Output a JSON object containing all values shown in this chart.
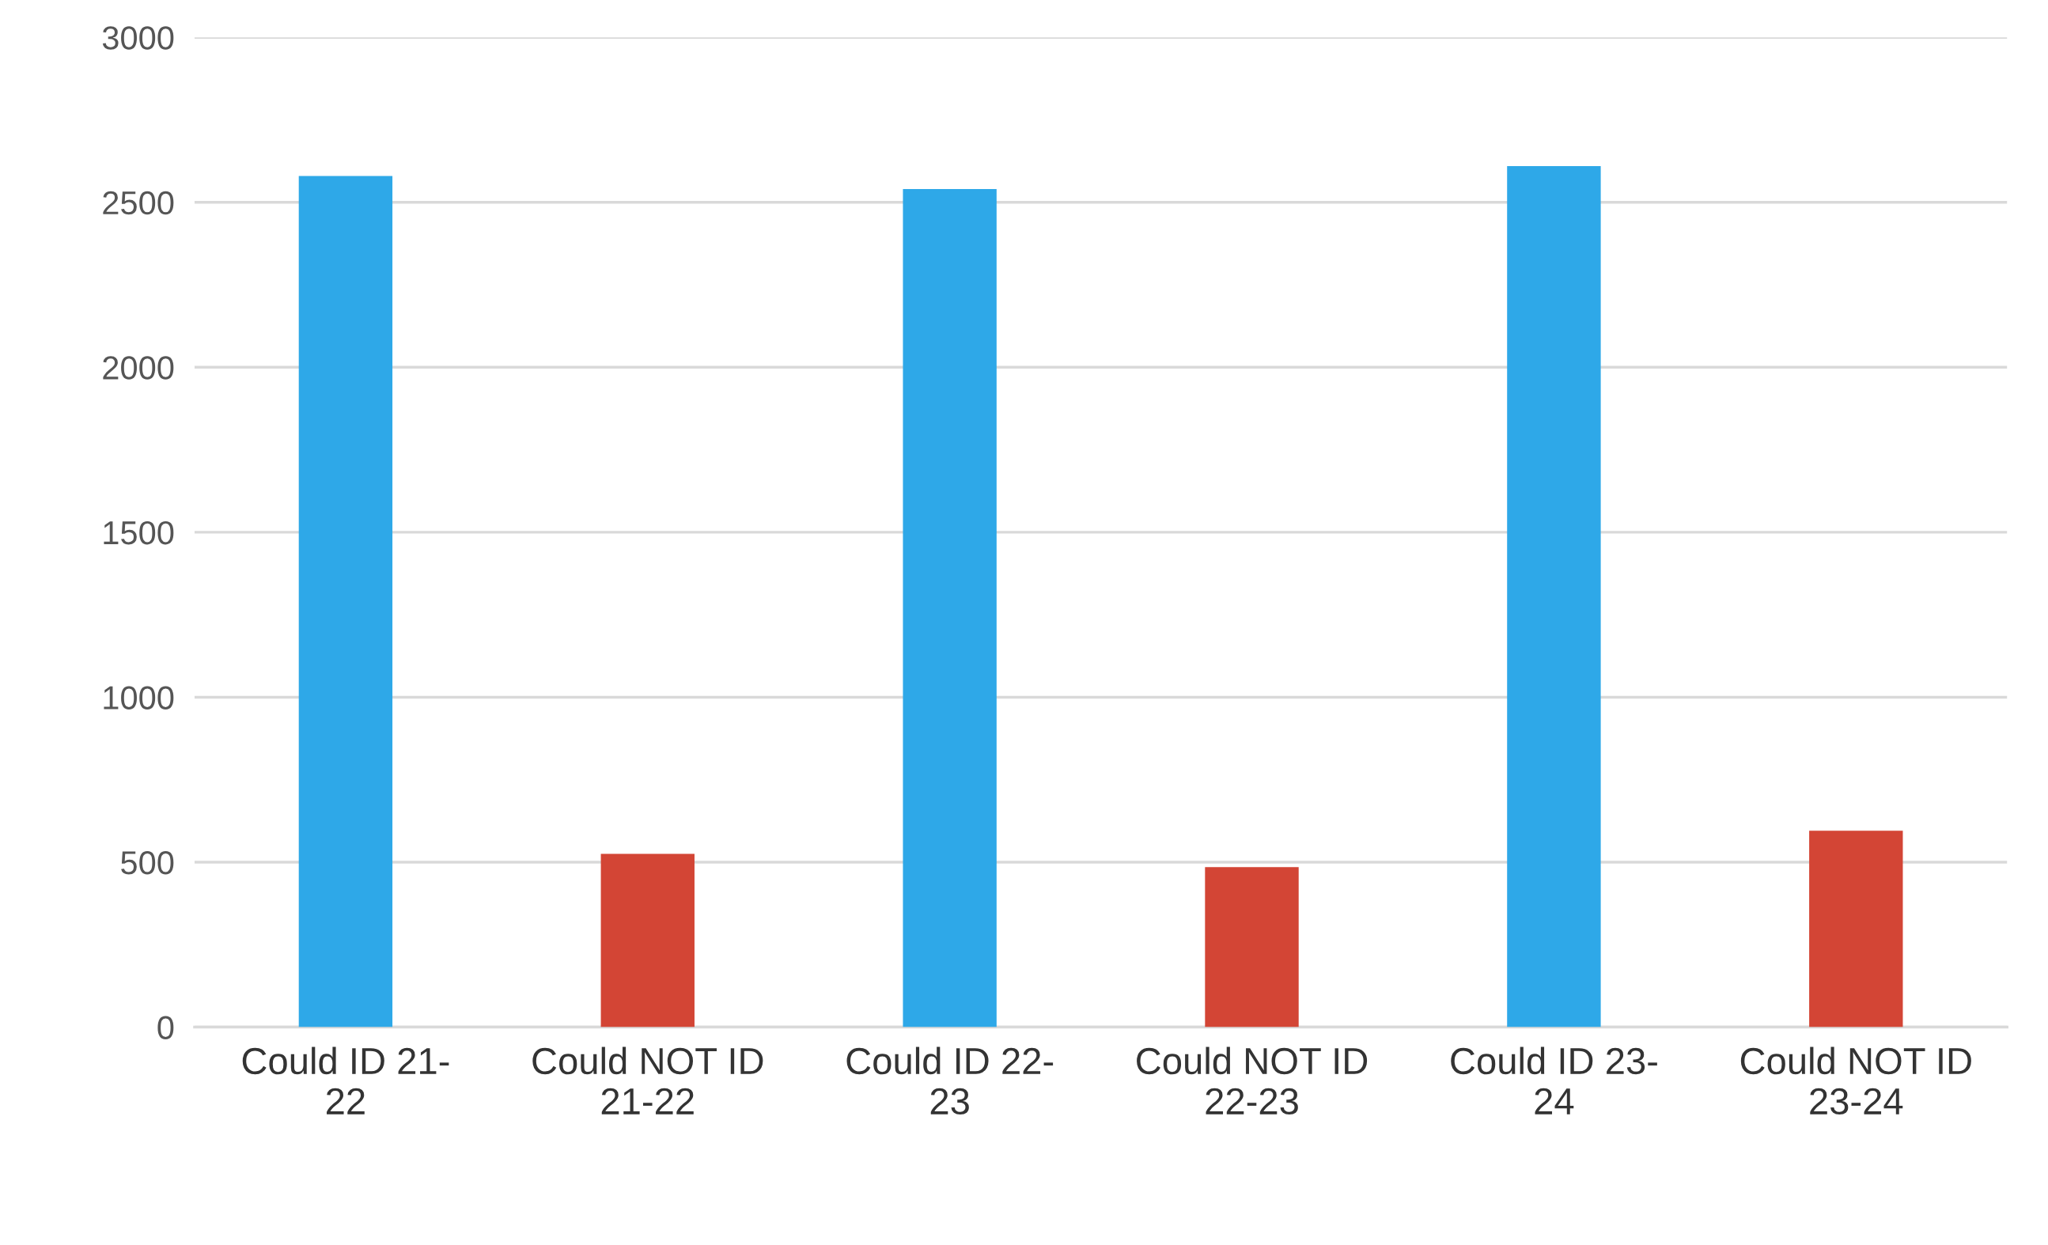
{
  "chart_data": {
    "type": "bar",
    "categories": [
      "Could ID 21-\n22",
      "Could NOT ID\n21-22",
      "Could ID 22-\n23",
      "Could NOT ID\n22-23",
      "Could ID 23-\n24",
      "Could NOT ID\n23-24"
    ],
    "values": [
      2580,
      525,
      2540,
      485,
      2610,
      595
    ],
    "colors": [
      "#2ea8e8",
      "#d34535",
      "#2ea8e8",
      "#d34535",
      "#2ea8e8",
      "#d34535"
    ],
    "ylim": [
      0,
      3000
    ],
    "yticks": [
      0,
      500,
      1000,
      1500,
      2000,
      2500,
      3000
    ],
    "grid": "y"
  }
}
